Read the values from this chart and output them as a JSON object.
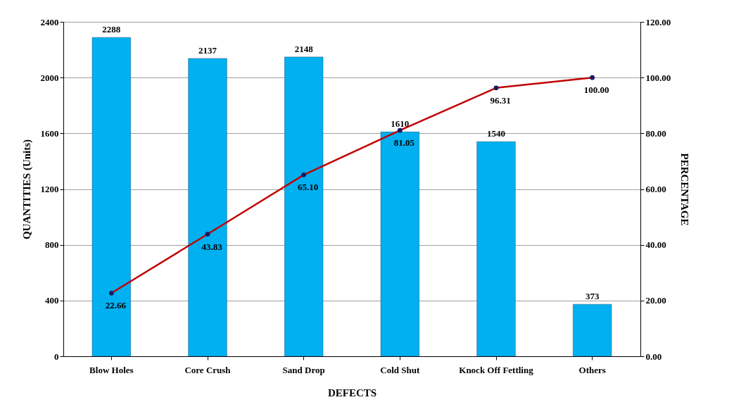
{
  "chart_data": {
    "type": "bar",
    "xlabel": "DEFECTS",
    "ylabel": "QUANTITIES (Units)",
    "y2label": "PERCENTAGE",
    "categories": [
      "Blow Holes",
      "Core Crush",
      "Sand Drop",
      "Cold Shut",
      "Knock Off Fettling",
      "Others"
    ],
    "series": [
      {
        "color": "#00b0f0",
        "values": [
          2288,
          2137,
          2148,
          1610,
          1540,
          373
        ]
      },
      {
        "type": "line",
        "axis": "y2",
        "color": "#c00000",
        "marker": "circle",
        "values": [
          22.66,
          43.83,
          65.1,
          81.05,
          96.31,
          100.0
        ],
        "value_labels": [
          "22.66",
          "43.83",
          "65.10",
          "81.05",
          "96.31",
          "100.00"
        ]
      }
    ],
    "data_labels": true,
    "ylim": [
      0,
      2400
    ],
    "yticks": [
      0,
      400,
      800,
      1200,
      1600,
      2000,
      2400
    ],
    "y2lim": [
      0,
      120
    ],
    "y2ticks": [
      {
        "value": 0,
        "label": "0.00"
      },
      {
        "value": 20,
        "label": "20.00"
      },
      {
        "value": 40,
        "label": "40.00"
      },
      {
        "value": 60,
        "label": "60.00"
      },
      {
        "value": 80,
        "label": "80.00"
      },
      {
        "value": 100,
        "label": "100.00"
      },
      {
        "value": 120,
        "label": "120.00"
      }
    ],
    "grid": "y"
  }
}
